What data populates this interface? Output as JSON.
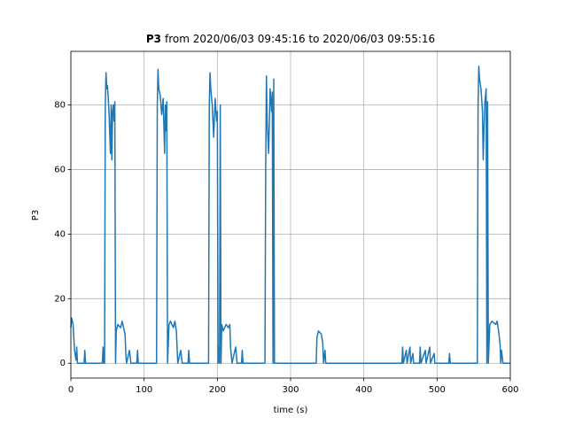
{
  "chart_data": {
    "type": "line",
    "title": {
      "bold": "P3",
      "text": "from 2020/06/03 09:45:16 to 2020/06/03 09:55:16"
    },
    "x_label": "time (s)",
    "y_label": "P3",
    "xlim": [
      0,
      600
    ],
    "ylim": [
      -4.6,
      96.6
    ],
    "xticks": [
      0,
      100,
      200,
      300,
      400,
      500,
      600
    ],
    "yticks": [
      0,
      20,
      40,
      60,
      80
    ],
    "grid": true,
    "x": [
      0,
      1,
      3,
      5,
      7,
      8,
      9,
      18,
      19,
      20,
      43,
      44,
      45,
      46,
      47,
      48,
      49,
      50,
      52,
      54,
      55,
      56,
      57,
      58,
      59,
      60,
      61,
      62,
      64,
      68,
      70,
      72,
      74,
      75,
      76,
      80,
      82,
      90,
      91,
      92,
      117,
      118,
      119,
      120,
      122,
      124,
      126,
      128,
      129,
      130,
      131,
      132,
      134,
      136,
      140,
      142,
      144,
      145,
      146,
      150,
      152,
      160,
      161,
      162,
      188,
      189,
      190,
      191,
      193,
      195,
      197,
      199,
      200,
      201,
      202,
      203,
      204,
      205,
      206,
      208,
      212,
      215,
      217,
      218,
      220,
      225,
      227,
      233,
      234,
      235,
      265,
      266,
      267,
      268,
      270,
      272,
      274,
      275,
      276,
      277,
      278,
      335,
      336,
      338,
      342,
      344,
      345,
      347,
      348,
      452,
      453,
      454,
      458,
      459,
      463,
      464,
      467,
      468,
      476,
      477,
      478,
      484,
      485,
      490,
      491,
      496,
      497,
      516,
      517,
      518,
      555,
      556,
      557,
      558,
      560,
      562,
      563,
      565,
      567,
      568,
      569,
      570,
      572,
      575,
      580,
      582,
      584,
      586,
      587,
      588,
      590,
      600
    ],
    "series": [
      {
        "color": "#1f77b4",
        "values": [
          11,
          14,
          12,
          4,
          1,
          5,
          0,
          0,
          4,
          0,
          0,
          5,
          0,
          0,
          80,
          90,
          85,
          86,
          78,
          65,
          80,
          63,
          78,
          80,
          75,
          81,
          0,
          10,
          12,
          11,
          13,
          11,
          9,
          3,
          0,
          4,
          0,
          0,
          4,
          0,
          0,
          80,
          91,
          85,
          83,
          77,
          82,
          65,
          80,
          72,
          81,
          0,
          12,
          13,
          11,
          13,
          10,
          5,
          0,
          4,
          0,
          0,
          4,
          0,
          0,
          80,
          90,
          85,
          80,
          70,
          82,
          75,
          78,
          0,
          5,
          0,
          80,
          0,
          12,
          10,
          12,
          11,
          12,
          5,
          0,
          5,
          0,
          0,
          4,
          0,
          0,
          60,
          89,
          75,
          65,
          85,
          78,
          84,
          0,
          88,
          0,
          0,
          8,
          10,
          9,
          6,
          0,
          4,
          0,
          0,
          5,
          0,
          4,
          0,
          5,
          0,
          3,
          0,
          0,
          5,
          0,
          4,
          0,
          5,
          0,
          3,
          0,
          0,
          3,
          0,
          0,
          80,
          92,
          88,
          85,
          78,
          63,
          80,
          85,
          0,
          81,
          0,
          12,
          13,
          12,
          13,
          10,
          6,
          0,
          4,
          0,
          0
        ]
      }
    ]
  }
}
